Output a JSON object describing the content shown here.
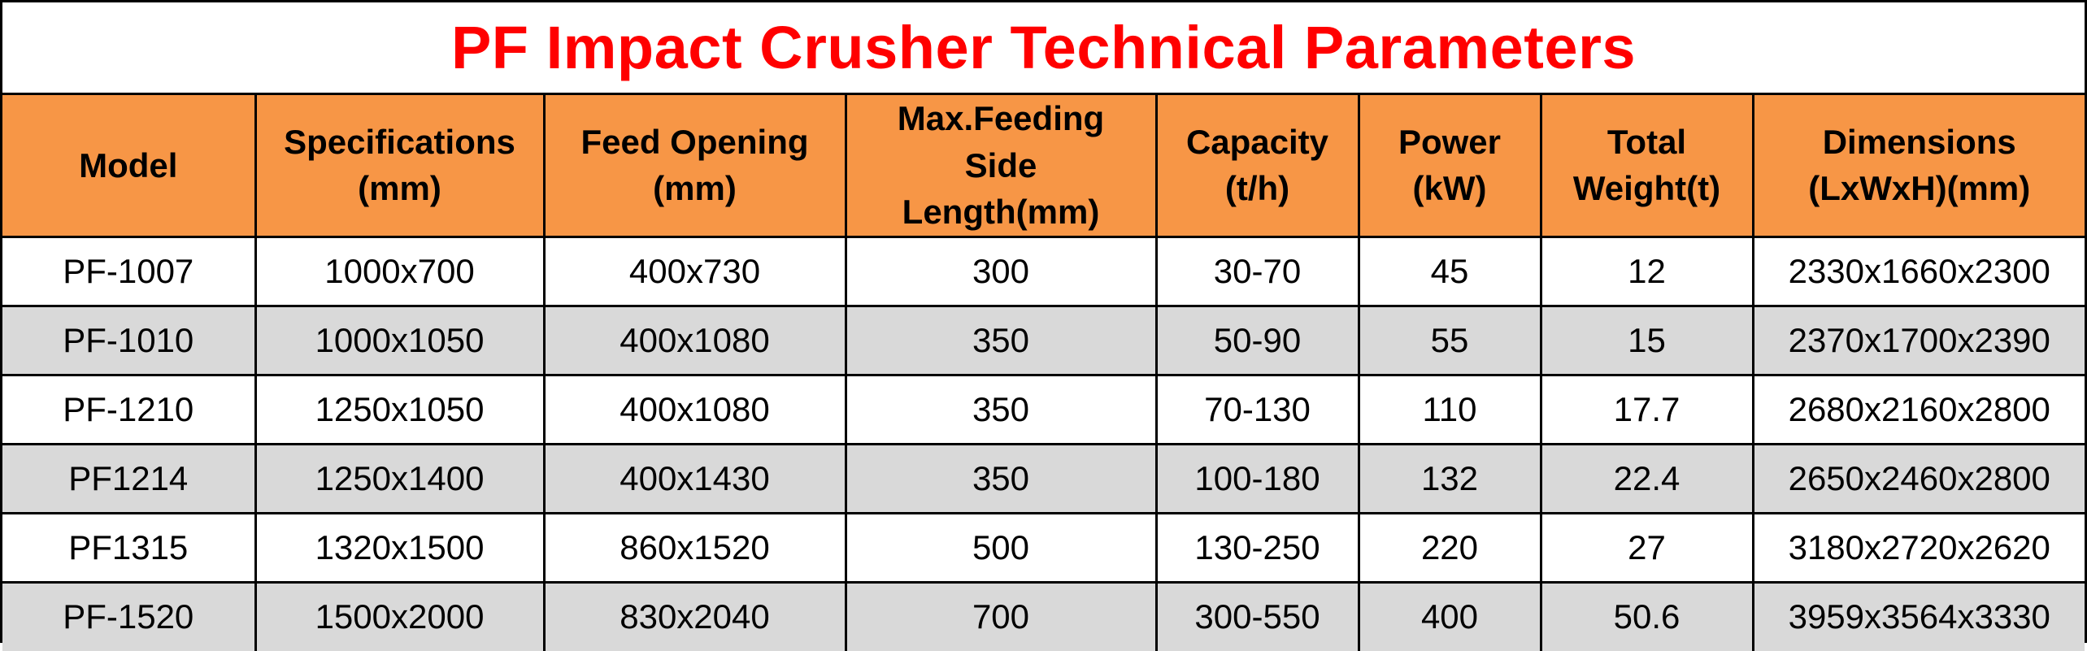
{
  "title": "PF Impact Crusher Technical Parameters",
  "colors": {
    "title": "#ff0000",
    "header_bg": "#f79646",
    "alt_row_bg": "#d9d9d9",
    "border": "#000000"
  },
  "table": {
    "headers": [
      [
        "Model"
      ],
      [
        "Specifications",
        "(mm)"
      ],
      [
        "Feed Opening",
        "(mm)"
      ],
      [
        "Max.Feeding",
        "Side",
        "Length(mm)"
      ],
      [
        "Capacity",
        "(t/h)"
      ],
      [
        "Power",
        "(kW)"
      ],
      [
        "Total",
        "Weight(t)"
      ],
      [
        "Dimensions",
        "(LxWxH)(mm)"
      ]
    ],
    "rows": [
      [
        "PF-1007",
        "1000x700",
        "400x730",
        "300",
        "30-70",
        "45",
        "12",
        "2330x1660x2300"
      ],
      [
        "PF-1010",
        "1000x1050",
        "400x1080",
        "350",
        "50-90",
        "55",
        "15",
        "2370x1700x2390"
      ],
      [
        "PF-1210",
        "1250x1050",
        "400x1080",
        "350",
        "70-130",
        "110",
        "17.7",
        "2680x2160x2800"
      ],
      [
        "PF1214",
        "1250x1400",
        "400x1430",
        "350",
        "100-180",
        "132",
        "22.4",
        "2650x2460x2800"
      ],
      [
        "PF1315",
        "1320x1500",
        "860x1520",
        "500",
        "130-250",
        "220",
        "27",
        "3180x2720x2620"
      ],
      [
        "PF-1520",
        "1500x2000",
        "830x2040",
        "700",
        "300-550",
        "400",
        "50.6",
        "3959x3564x3330"
      ]
    ]
  }
}
